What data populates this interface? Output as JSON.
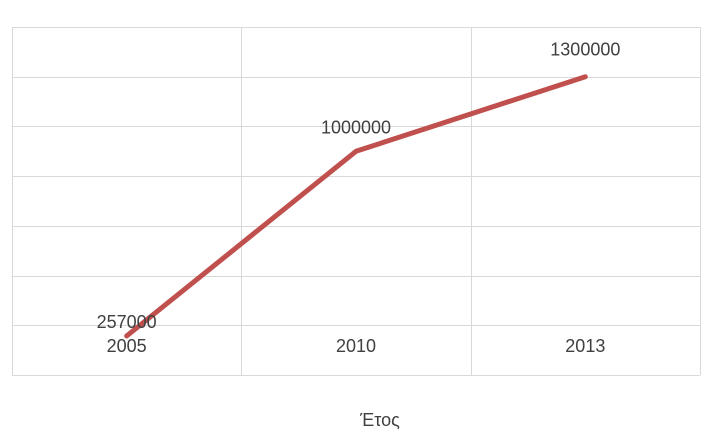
{
  "chart_data": {
    "type": "line",
    "categories": [
      "2005",
      "2010",
      "2013"
    ],
    "series": [
      {
        "values": [
          257000,
          1000000,
          1300000
        ],
        "color": "#c0504d"
      }
    ],
    "data_labels": [
      "257000",
      "1000000",
      "1300000"
    ],
    "title": "",
    "xlabel": "Έτος",
    "ylabel": "",
    "ylim": [
      100000,
      1500000
    ],
    "y_gridline_step": 200000,
    "grid": true,
    "y_tick_labels_visible": false,
    "legend": "none"
  }
}
